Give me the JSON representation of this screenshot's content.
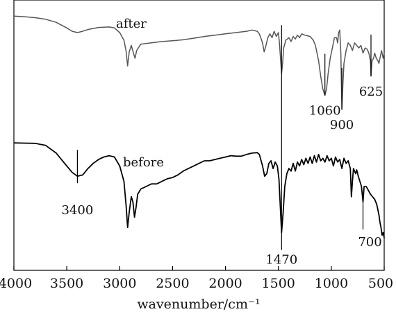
{
  "chart_data": {
    "type": "line",
    "title": "",
    "xlabel": "wavenumber/cm⁻¹",
    "ylabel": "",
    "xlim": [
      4000,
      500
    ],
    "x_reversed": true,
    "grid": false,
    "x_ticks": [
      "4000",
      "3500",
      "3000",
      "2500",
      "2000",
      "1500",
      "1000",
      "500"
    ],
    "series": [
      {
        "name": "after",
        "color": "#555555",
        "points": [
          [
            4000,
            0.964
          ],
          [
            3900,
            0.962
          ],
          [
            3800,
            0.958
          ],
          [
            3700,
            0.952
          ],
          [
            3600,
            0.94
          ],
          [
            3500,
            0.918
          ],
          [
            3450,
            0.905
          ],
          [
            3400,
            0.9
          ],
          [
            3350,
            0.905
          ],
          [
            3300,
            0.912
          ],
          [
            3200,
            0.92
          ],
          [
            3100,
            0.922
          ],
          [
            3050,
            0.918
          ],
          [
            3000,
            0.9
          ],
          [
            2960,
            0.87
          ],
          [
            2940,
            0.83
          ],
          [
            2925,
            0.77
          ],
          [
            2910,
            0.825
          ],
          [
            2890,
            0.85
          ],
          [
            2870,
            0.82
          ],
          [
            2855,
            0.8
          ],
          [
            2840,
            0.83
          ],
          [
            2800,
            0.855
          ],
          [
            2700,
            0.86
          ],
          [
            2600,
            0.865
          ],
          [
            2500,
            0.868
          ],
          [
            2400,
            0.872
          ],
          [
            2300,
            0.878
          ],
          [
            2200,
            0.885
          ],
          [
            2100,
            0.89
          ],
          [
            2000,
            0.895
          ],
          [
            1900,
            0.9
          ],
          [
            1800,
            0.905
          ],
          [
            1750,
            0.91
          ],
          [
            1700,
            0.905
          ],
          [
            1680,
            0.895
          ],
          [
            1650,
            0.86
          ],
          [
            1635,
            0.825
          ],
          [
            1620,
            0.845
          ],
          [
            1600,
            0.88
          ],
          [
            1580,
            0.895
          ],
          [
            1560,
            0.88
          ],
          [
            1540,
            0.905
          ],
          [
            1520,
            0.885
          ],
          [
            1500,
            0.9
          ],
          [
            1490,
            0.86
          ],
          [
            1470,
            0.74
          ],
          [
            1460,
            0.78
          ],
          [
            1450,
            0.84
          ],
          [
            1430,
            0.87
          ],
          [
            1400,
            0.88
          ],
          [
            1380,
            0.865
          ],
          [
            1360,
            0.885
          ],
          [
            1340,
            0.875
          ],
          [
            1320,
            0.89
          ],
          [
            1300,
            0.88
          ],
          [
            1280,
            0.895
          ],
          [
            1250,
            0.89
          ],
          [
            1200,
            0.885
          ],
          [
            1170,
            0.87
          ],
          [
            1150,
            0.85
          ],
          [
            1120,
            0.79
          ],
          [
            1100,
            0.73
          ],
          [
            1080,
            0.68
          ],
          [
            1060,
            0.655
          ],
          [
            1045,
            0.68
          ],
          [
            1030,
            0.74
          ],
          [
            1010,
            0.8
          ],
          [
            990,
            0.84
          ],
          [
            970,
            0.88
          ],
          [
            950,
            0.88
          ],
          [
            940,
            0.86
          ],
          [
            930,
            0.9
          ],
          [
            920,
            0.91
          ],
          [
            910,
            0.82
          ],
          [
            900,
            0.6
          ],
          [
            890,
            0.7
          ],
          [
            880,
            0.78
          ],
          [
            860,
            0.83
          ],
          [
            840,
            0.86
          ],
          [
            820,
            0.85
          ],
          [
            800,
            0.83
          ],
          [
            780,
            0.86
          ],
          [
            760,
            0.85
          ],
          [
            740,
            0.84
          ],
          [
            720,
            0.85
          ],
          [
            700,
            0.82
          ],
          [
            680,
            0.84
          ],
          [
            660,
            0.835
          ],
          [
            645,
            0.82
          ],
          [
            630,
            0.79
          ],
          [
            625,
            0.73
          ],
          [
            615,
            0.79
          ],
          [
            600,
            0.8
          ],
          [
            590,
            0.82
          ],
          [
            575,
            0.8
          ],
          [
            560,
            0.79
          ],
          [
            550,
            0.78
          ],
          [
            540,
            0.8
          ],
          [
            525,
            0.83
          ],
          [
            510,
            0.8
          ],
          [
            500,
            0.82
          ]
        ]
      },
      {
        "name": "before",
        "color": "#000000",
        "points": [
          [
            4000,
            0.47
          ],
          [
            3900,
            0.469
          ],
          [
            3800,
            0.468
          ],
          [
            3700,
            0.46
          ],
          [
            3600,
            0.43
          ],
          [
            3500,
            0.38
          ],
          [
            3450,
            0.355
          ],
          [
            3400,
            0.34
          ],
          [
            3350,
            0.345
          ],
          [
            3300,
            0.37
          ],
          [
            3250,
            0.39
          ],
          [
            3200,
            0.405
          ],
          [
            3150,
            0.415
          ],
          [
            3100,
            0.42
          ],
          [
            3050,
            0.415
          ],
          [
            3000,
            0.38
          ],
          [
            2960,
            0.32
          ],
          [
            2940,
            0.23
          ],
          [
            2925,
            0.14
          ],
          [
            2910,
            0.2
          ],
          [
            2890,
            0.26
          ],
          [
            2875,
            0.24
          ],
          [
            2860,
            0.18
          ],
          [
            2845,
            0.22
          ],
          [
            2830,
            0.27
          ],
          [
            2800,
            0.29
          ],
          [
            2750,
            0.3
          ],
          [
            2700,
            0.31
          ],
          [
            2650,
            0.31
          ],
          [
            2600,
            0.32
          ],
          [
            2550,
            0.33
          ],
          [
            2500,
            0.335
          ],
          [
            2450,
            0.345
          ],
          [
            2400,
            0.36
          ],
          [
            2350,
            0.37
          ],
          [
            2300,
            0.38
          ],
          [
            2250,
            0.39
          ],
          [
            2200,
            0.4
          ],
          [
            2150,
            0.4
          ],
          [
            2100,
            0.405
          ],
          [
            2050,
            0.41
          ],
          [
            2000,
            0.415
          ],
          [
            1950,
            0.42
          ],
          [
            1900,
            0.418
          ],
          [
            1850,
            0.418
          ],
          [
            1800,
            0.425
          ],
          [
            1750,
            0.43
          ],
          [
            1700,
            0.432
          ],
          [
            1680,
            0.425
          ],
          [
            1650,
            0.38
          ],
          [
            1630,
            0.34
          ],
          [
            1610,
            0.35
          ],
          [
            1590,
            0.39
          ],
          [
            1570,
            0.4
          ],
          [
            1550,
            0.37
          ],
          [
            1530,
            0.395
          ],
          [
            1510,
            0.38
          ],
          [
            1495,
            0.33
          ],
          [
            1470,
            0.12
          ],
          [
            1455,
            0.2
          ],
          [
            1440,
            0.3
          ],
          [
            1420,
            0.35
          ],
          [
            1400,
            0.37
          ],
          [
            1380,
            0.36
          ],
          [
            1360,
            0.39
          ],
          [
            1340,
            0.36
          ],
          [
            1320,
            0.395
          ],
          [
            1300,
            0.38
          ],
          [
            1280,
            0.405
          ],
          [
            1260,
            0.385
          ],
          [
            1240,
            0.41
          ],
          [
            1220,
            0.39
          ],
          [
            1200,
            0.415
          ],
          [
            1180,
            0.39
          ],
          [
            1160,
            0.42
          ],
          [
            1140,
            0.395
          ],
          [
            1120,
            0.425
          ],
          [
            1100,
            0.4
          ],
          [
            1080,
            0.41
          ],
          [
            1060,
            0.395
          ],
          [
            1040,
            0.42
          ],
          [
            1020,
            0.4
          ],
          [
            1000,
            0.41
          ],
          [
            980,
            0.38
          ],
          [
            960,
            0.415
          ],
          [
            940,
            0.395
          ],
          [
            920,
            0.405
          ],
          [
            900,
            0.37
          ],
          [
            880,
            0.41
          ],
          [
            860,
            0.39
          ],
          [
            840,
            0.4
          ],
          [
            820,
            0.37
          ],
          [
            810,
            0.26
          ],
          [
            800,
            0.32
          ],
          [
            790,
            0.37
          ],
          [
            770,
            0.35
          ],
          [
            760,
            0.365
          ],
          [
            745,
            0.34
          ],
          [
            730,
            0.32
          ],
          [
            715,
            0.3
          ],
          [
            700,
            0.24
          ],
          [
            690,
            0.3
          ],
          [
            670,
            0.3
          ],
          [
            650,
            0.285
          ],
          [
            630,
            0.27
          ],
          [
            610,
            0.26
          ],
          [
            590,
            0.25
          ],
          [
            570,
            0.23
          ],
          [
            550,
            0.19
          ],
          [
            540,
            0.16
          ],
          [
            530,
            0.14
          ],
          [
            520,
            0.11
          ],
          [
            510,
            0.12
          ],
          [
            500,
            0.1
          ]
        ]
      }
    ],
    "series_labels": [
      "after",
      "before"
    ],
    "annotations": [
      {
        "label": "3400",
        "x": 3400,
        "series": "before"
      },
      {
        "label": "1470",
        "x": 1470,
        "series": "both"
      },
      {
        "label": "1060",
        "x": 1060,
        "series": "after"
      },
      {
        "label": "900",
        "x": 900,
        "series": "after"
      },
      {
        "label": "625",
        "x": 625,
        "series": "after"
      },
      {
        "label": "700",
        "x": 700,
        "series": "before"
      }
    ]
  }
}
